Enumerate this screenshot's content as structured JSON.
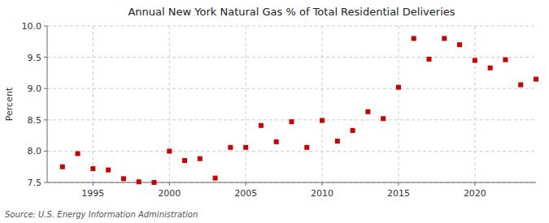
{
  "chart_data": {
    "type": "scatter",
    "title": "Annual New York Natural Gas % of Total Residential Deliveries",
    "y_label": "Percent",
    "annotations": [
      "Source: U.S. Energy Information Administration"
    ],
    "x": [
      1993,
      1994,
      1995,
      1996,
      1997,
      1998,
      1999,
      2000,
      2001,
      2002,
      2003,
      2004,
      2005,
      2006,
      2007,
      2008,
      2009,
      2010,
      2011,
      2012,
      2013,
      2014,
      2015,
      2016,
      2017,
      2018,
      2019,
      2020,
      2021,
      2022,
      2023,
      2024
    ],
    "values": [
      7.75,
      7.96,
      7.72,
      7.7,
      7.56,
      7.51,
      7.5,
      8.0,
      7.85,
      7.88,
      7.57,
      8.06,
      8.06,
      8.41,
      8.15,
      8.47,
      8.06,
      8.49,
      8.16,
      8.33,
      8.63,
      8.52,
      9.02,
      9.8,
      9.47,
      9.8,
      9.7,
      9.45,
      9.33,
      9.46,
      9.06,
      9.15
    ],
    "color": "#CC0000",
    "marker": "square",
    "xlim": [
      1992,
      2024
    ],
    "xticks": [
      1995,
      2000,
      2005,
      2010,
      2015,
      2020
    ],
    "ylim": [
      7.5,
      10.0
    ],
    "yticks": [
      7.5,
      {
        "value": 8.0,
        "label": "8.0"
      },
      8.5,
      {
        "value": 9.0,
        "label": "9.0"
      },
      9.5,
      {
        "value": 10.0,
        "label": "10.0"
      }
    ],
    "grid": true
  }
}
